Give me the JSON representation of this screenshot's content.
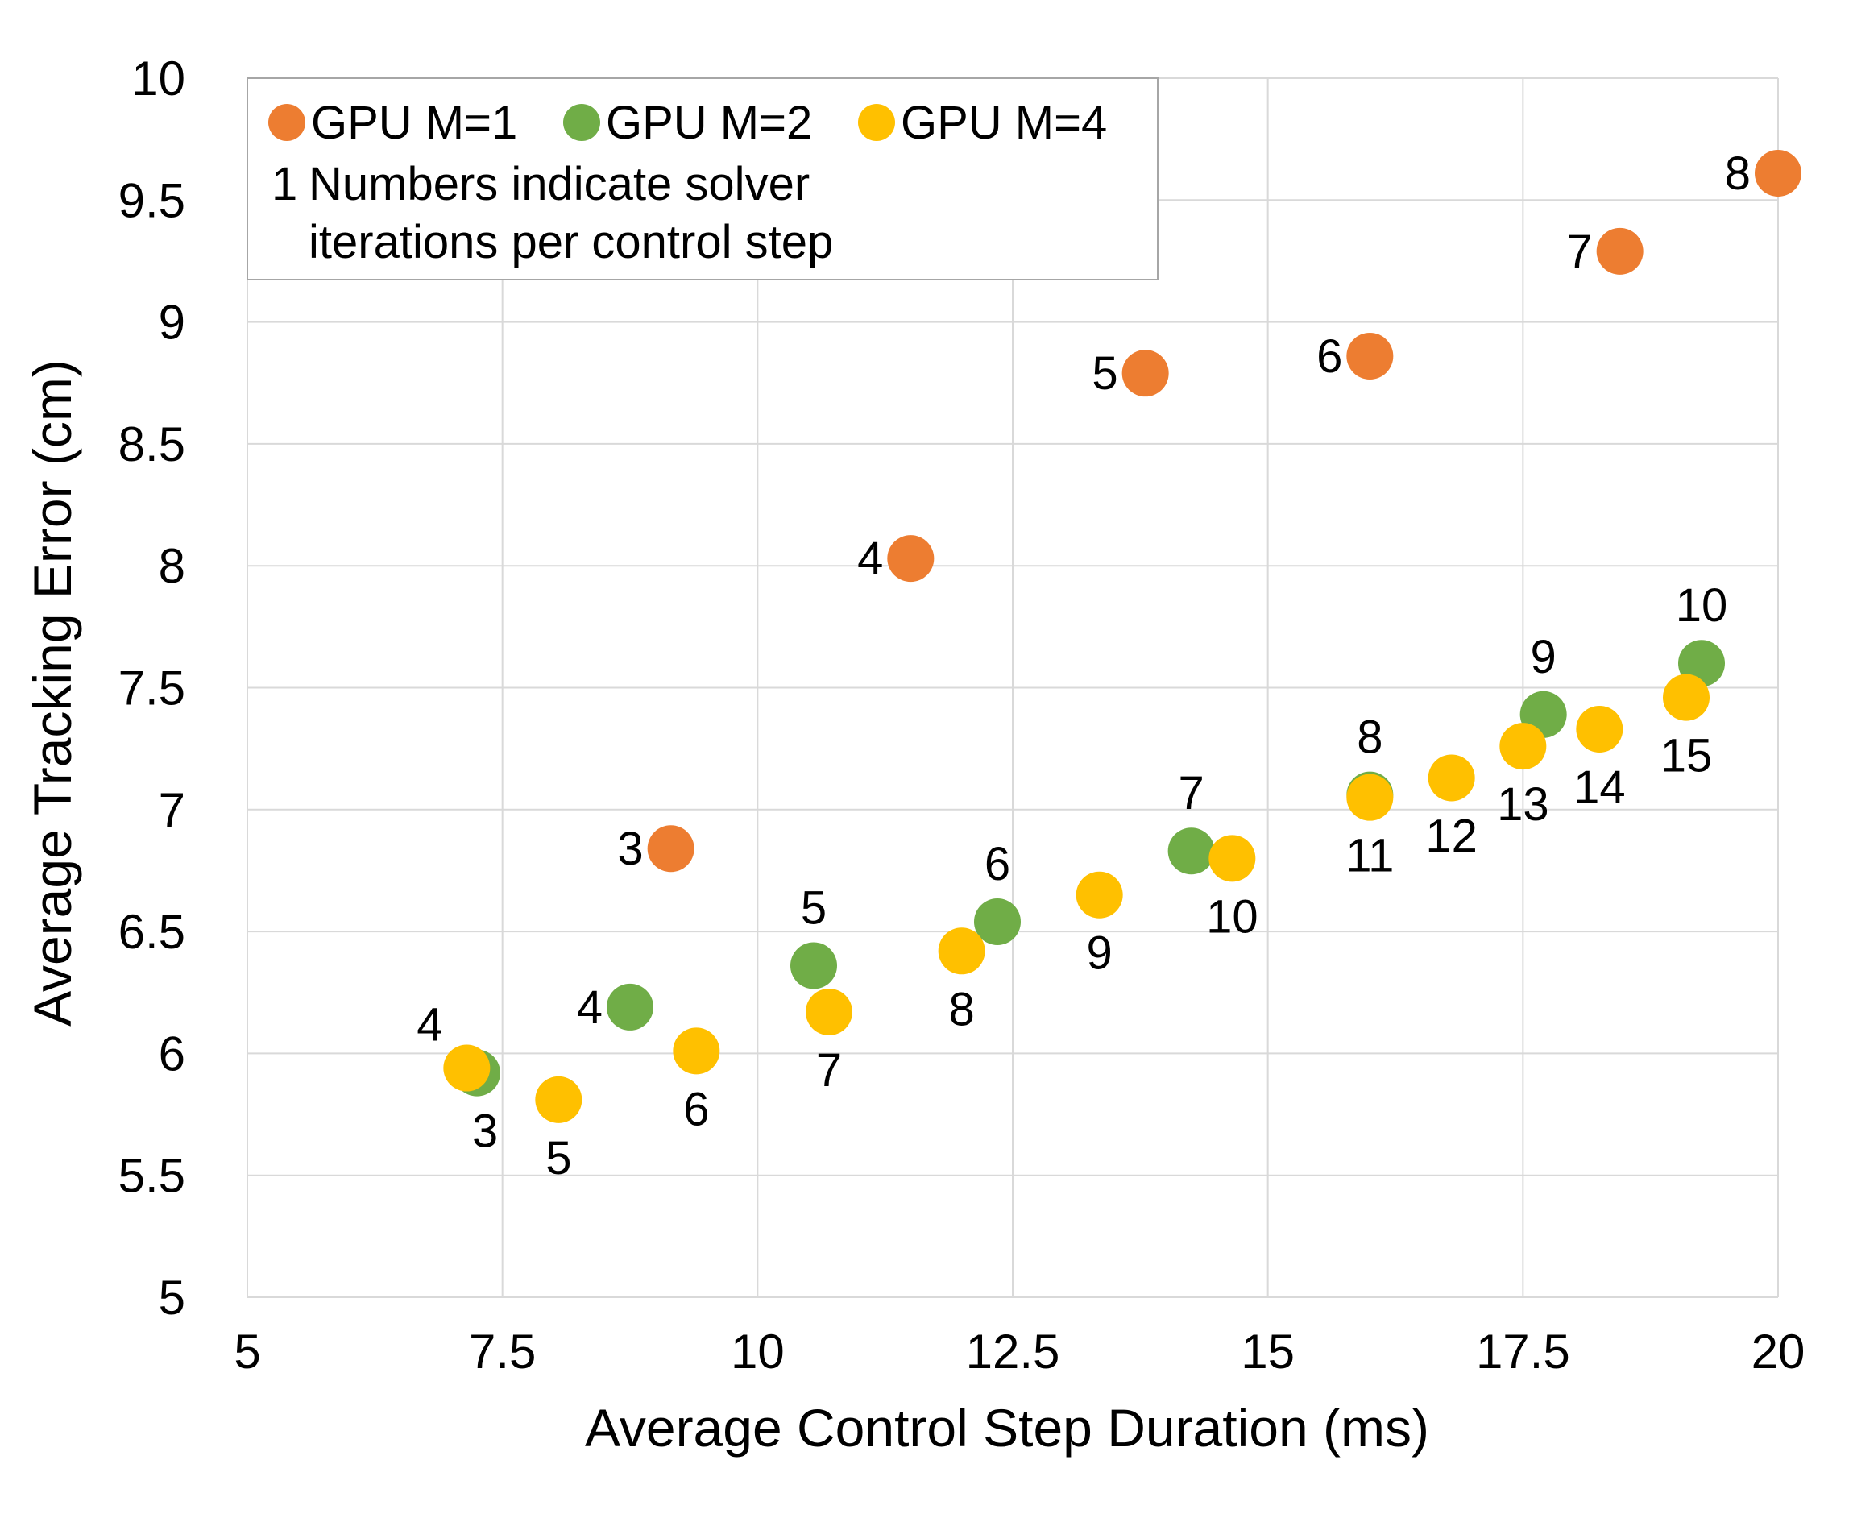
{
  "chart_data": {
    "type": "scatter",
    "xlabel": "Average Control Step Duration (ms)",
    "ylabel": "Average Tracking Error (cm)",
    "xlim": [
      5,
      20
    ],
    "ylim": [
      5,
      10
    ],
    "x_ticks": [
      "5",
      "7.5",
      "10",
      "12.5",
      "15",
      "17.5",
      "20"
    ],
    "y_ticks": [
      "5",
      "5.5",
      "6",
      "6.5",
      "7",
      "7.5",
      "8",
      "8.5",
      "9",
      "9.5",
      "10"
    ],
    "grid": true,
    "legend_position": "top-left",
    "legend_note_marker": "1",
    "legend_note_lines": [
      "Numbers indicate solver",
      "iterations per control step"
    ],
    "series": [
      {
        "name": "GPU M=1",
        "color": "#ED7D31",
        "points": [
          {
            "x": 9.15,
            "y": 6.84,
            "label": "3"
          },
          {
            "x": 11.5,
            "y": 8.03,
            "label": "4"
          },
          {
            "x": 13.8,
            "y": 8.79,
            "label": "5"
          },
          {
            "x": 16.0,
            "y": 8.86,
            "label": "6"
          },
          {
            "x": 18.45,
            "y": 9.29,
            "label": "7"
          },
          {
            "x": 20.0,
            "y": 9.61,
            "label": "8"
          }
        ]
      },
      {
        "name": "GPU M=2",
        "color": "#70AD47",
        "points": [
          {
            "x": 7.25,
            "y": 5.92,
            "label": "3"
          },
          {
            "x": 8.75,
            "y": 6.19,
            "label": "4"
          },
          {
            "x": 10.55,
            "y": 6.36,
            "label": "5"
          },
          {
            "x": 12.35,
            "y": 6.54,
            "label": "6"
          },
          {
            "x": 14.25,
            "y": 6.83,
            "label": "7"
          },
          {
            "x": 16.0,
            "y": 7.06,
            "label": "8"
          },
          {
            "x": 17.7,
            "y": 7.39,
            "label": "9"
          },
          {
            "x": 19.25,
            "y": 7.6,
            "label": "10"
          }
        ]
      },
      {
        "name": "GPU M=4",
        "color": "#FFC000",
        "points": [
          {
            "x": 7.15,
            "y": 5.94,
            "label": "4"
          },
          {
            "x": 8.05,
            "y": 5.81,
            "label": "5"
          },
          {
            "x": 9.4,
            "y": 6.01,
            "label": "6"
          },
          {
            "x": 10.7,
            "y": 6.17,
            "label": "7"
          },
          {
            "x": 12.0,
            "y": 6.42,
            "label": "8"
          },
          {
            "x": 13.35,
            "y": 6.65,
            "label": "9"
          },
          {
            "x": 14.65,
            "y": 6.8,
            "label": "10"
          },
          {
            "x": 16.0,
            "y": 7.05,
            "label": "11"
          },
          {
            "x": 16.8,
            "y": 7.13,
            "label": "12"
          },
          {
            "x": 17.5,
            "y": 7.26,
            "label": "13"
          },
          {
            "x": 18.25,
            "y": 7.33,
            "label": "14"
          },
          {
            "x": 19.1,
            "y": 7.46,
            "label": "15"
          }
        ]
      }
    ]
  }
}
